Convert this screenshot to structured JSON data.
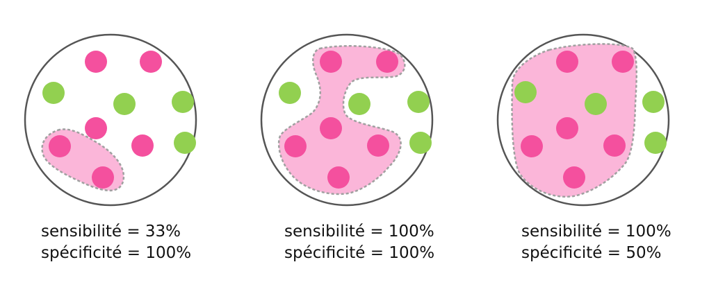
{
  "colors": {
    "positive_dot": "#f4509e",
    "negative_dot": "#92d050",
    "selection_fill": "#fbb6d9",
    "selection_border": "#a0a0a0",
    "circle_border": "#555555"
  },
  "panels": [
    {
      "sensitivity": "sensibilité = 33%",
      "specificity": "spécificité = 100%"
    },
    {
      "sensitivity": "sensibilité = 100%",
      "specificity": "spécificité = 100%"
    },
    {
      "sensitivity": "sensibilité = 100%",
      "specificity": "spécificité = 50%"
    }
  ]
}
